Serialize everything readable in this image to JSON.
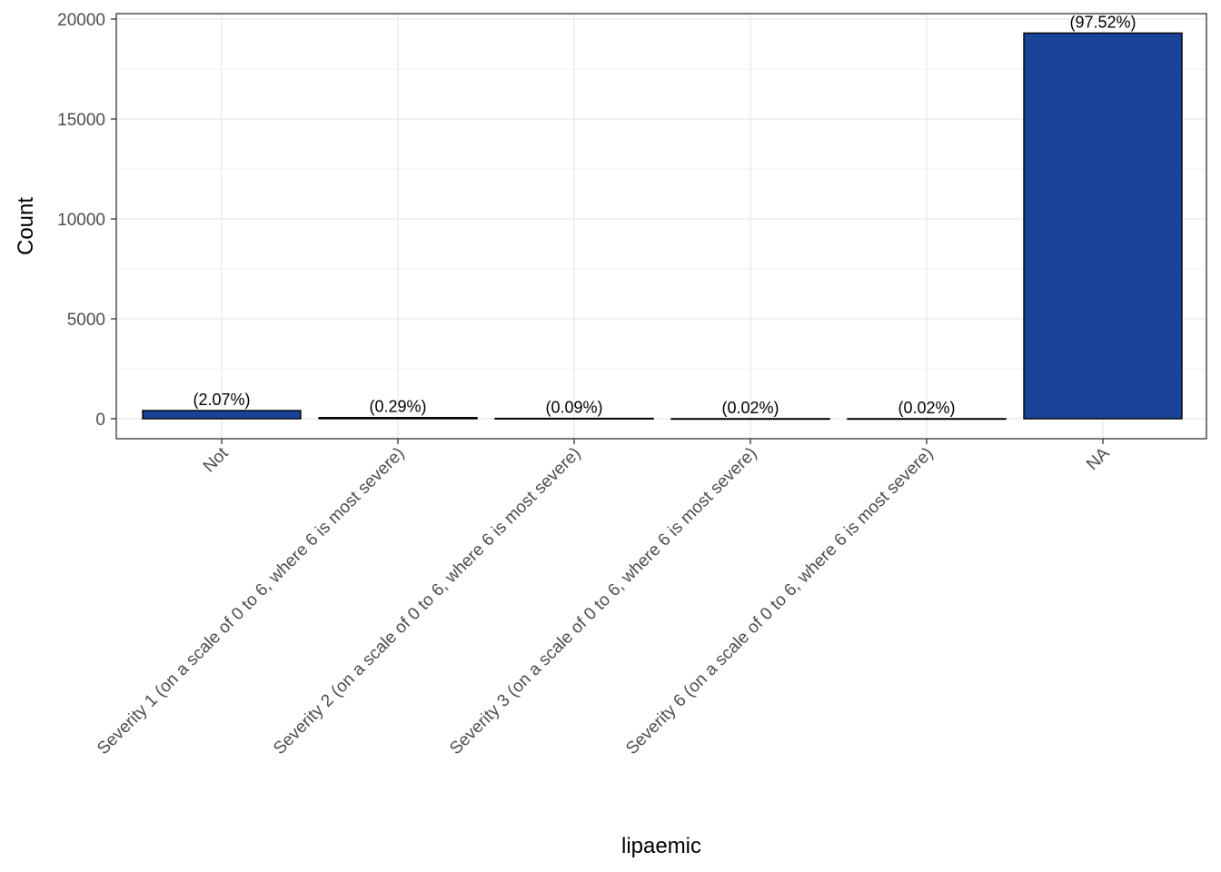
{
  "chart_data": {
    "type": "bar",
    "title": "",
    "xlabel": "lipaemic",
    "ylabel": "Count",
    "categories": [
      "Not",
      "Severity 1 (on a scale of 0 to 6, where 6 is most severe)",
      "Severity 2 (on a scale of 0 to 6, where 6 is most severe)",
      "Severity 3 (on a scale of 0 to 6, where 6 is most severe)",
      "Severity 6 (on a scale of 0 to 6, where 6 is most severe)",
      "NA"
    ],
    "values": [
      410,
      57,
      18,
      4,
      4,
      19300
    ],
    "labels": [
      "(2.07%)",
      "(0.29%)",
      "(0.09%)",
      "(0.02%)",
      "(0.02%)",
      "(97.52%)"
    ],
    "ylim": [
      0,
      20000
    ],
    "yticks": [
      0,
      5000,
      10000,
      15000,
      20000
    ],
    "grid": true,
    "bar_color": "#1a4499",
    "bar_outline": "#000000"
  }
}
